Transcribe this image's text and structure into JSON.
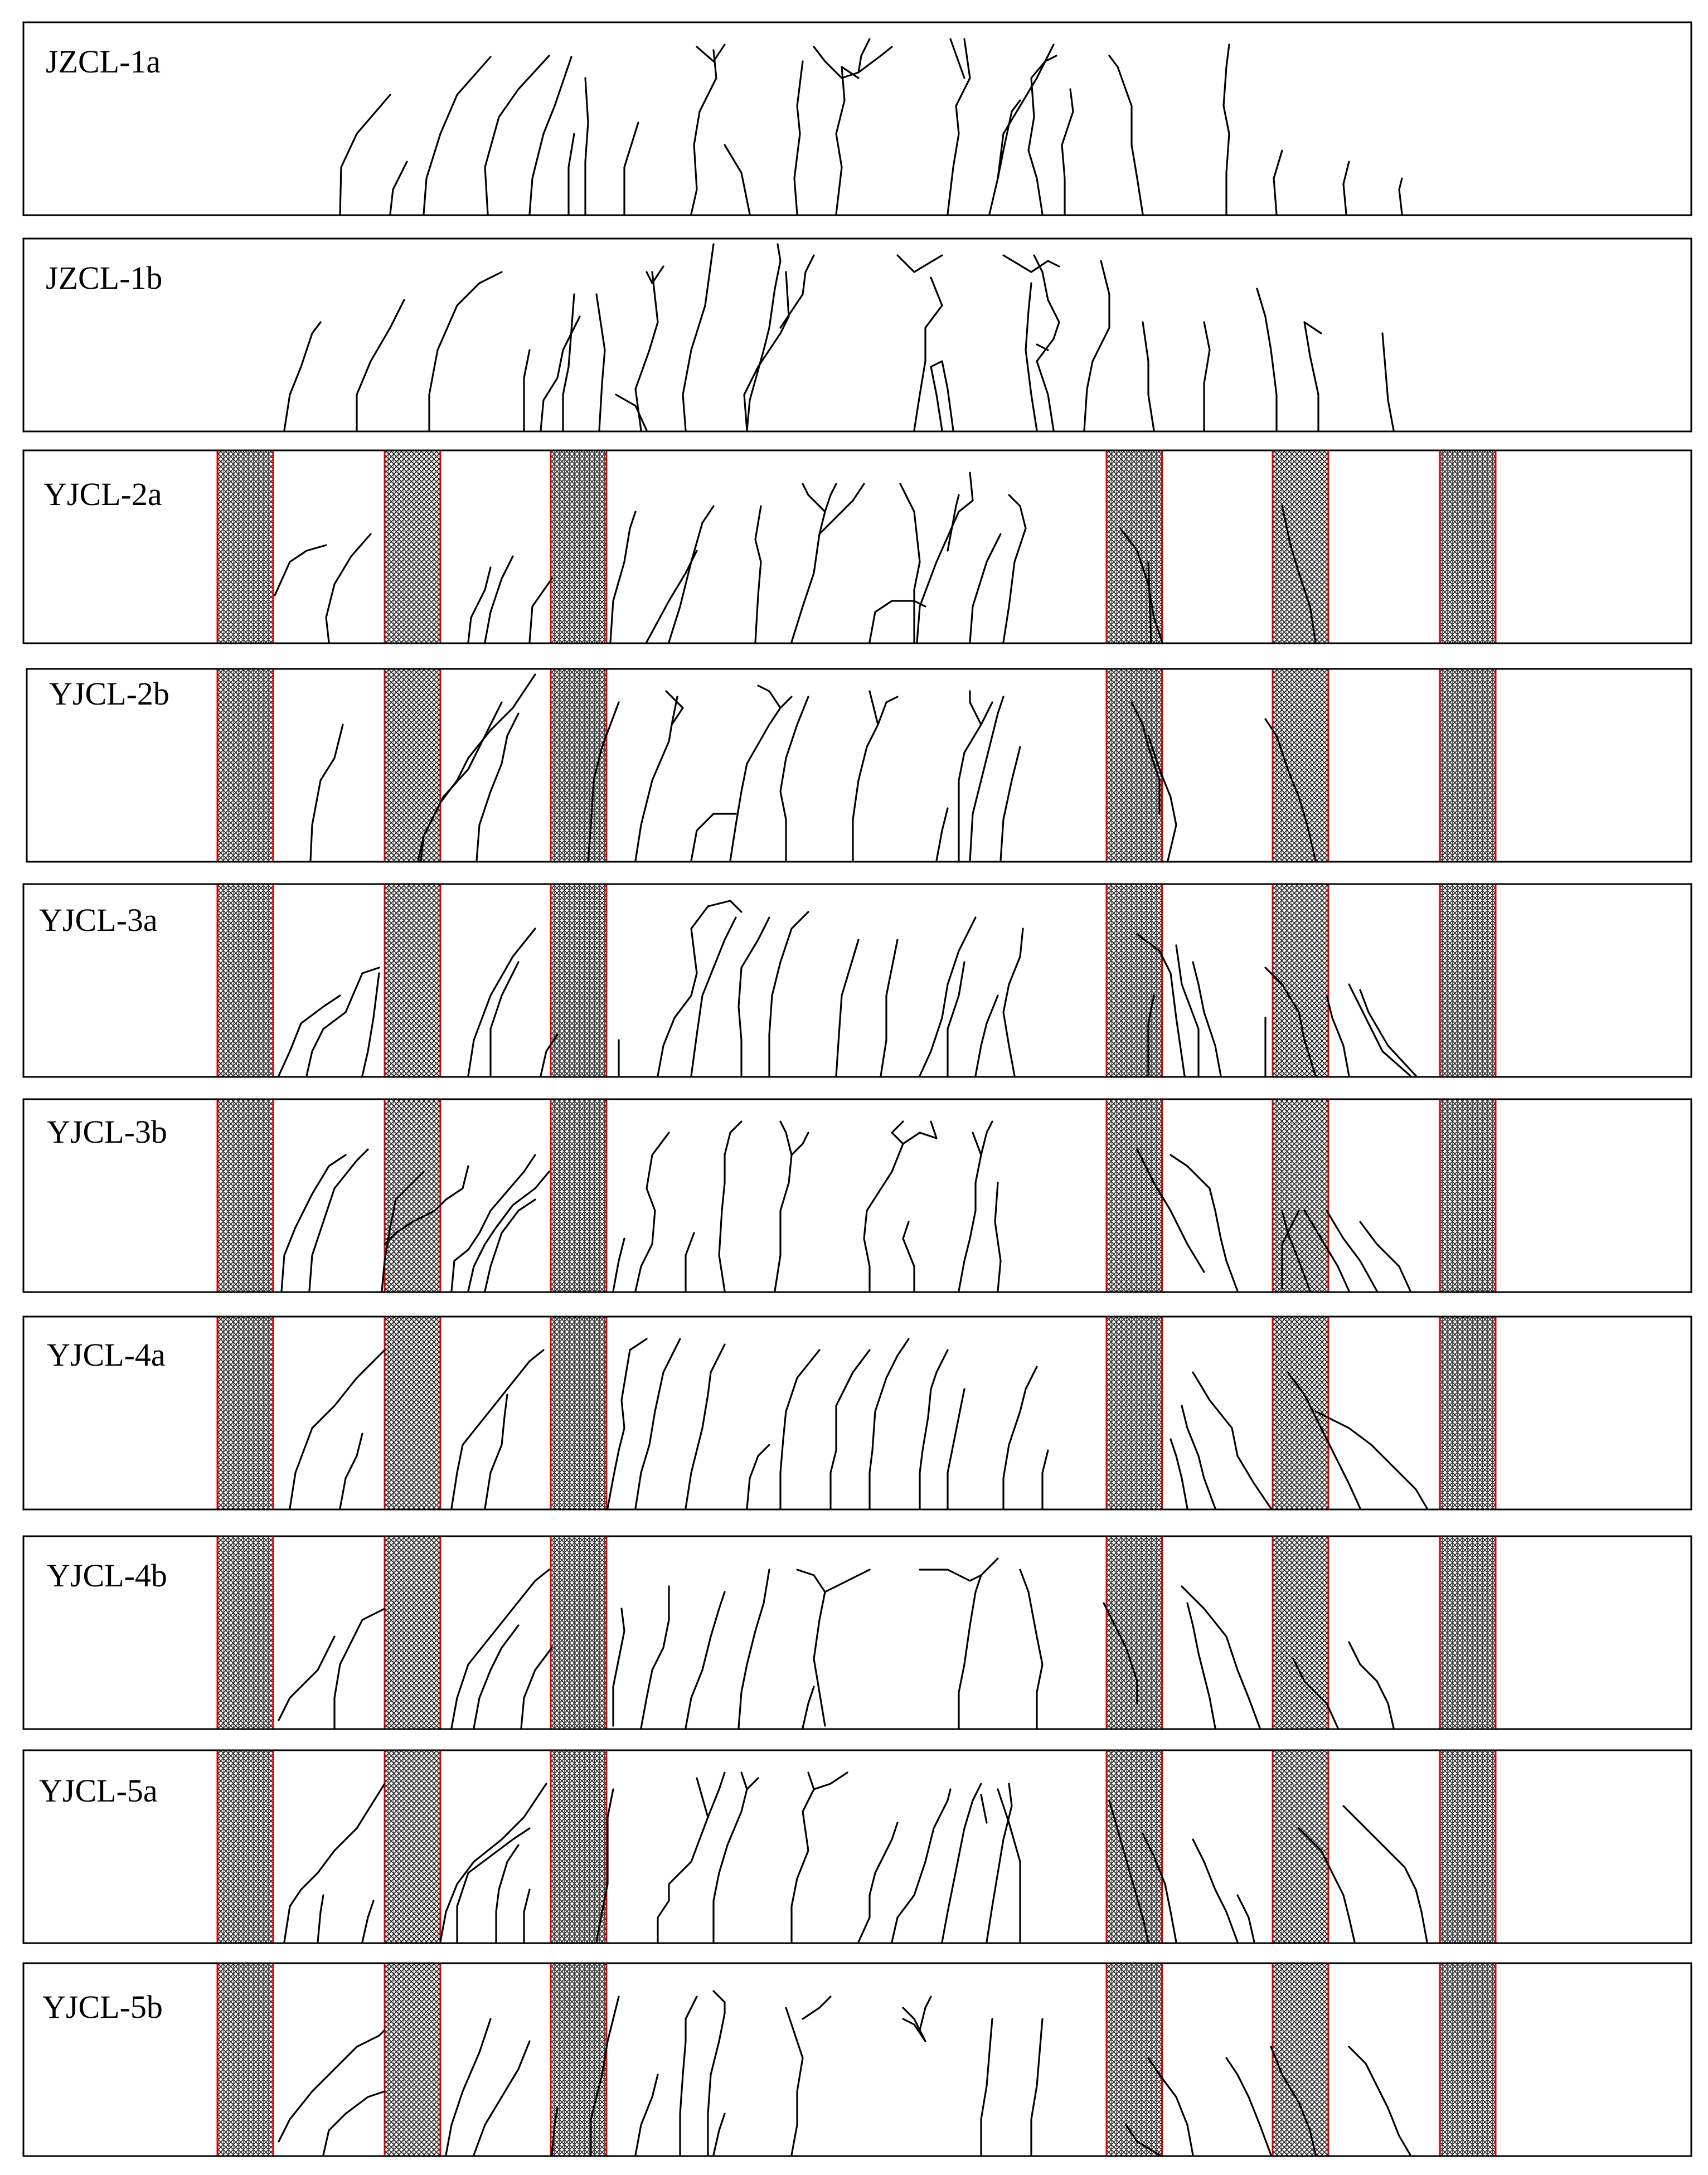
{
  "specimens": [
    {
      "label": "JZCL-1a",
      "strips": false
    },
    {
      "label": "JZCL-1b",
      "strips": false
    },
    {
      "label": "YJCL-2a",
      "strips": true
    },
    {
      "label": "YJCL-2b",
      "strips": true
    },
    {
      "label": "YJCL-3a",
      "strips": true
    },
    {
      "label": "YJCL-3b",
      "strips": true
    },
    {
      "label": "YJCL-4a",
      "strips": true
    },
    {
      "label": "YJCL-4b",
      "strips": true
    },
    {
      "label": "YJCL-5a",
      "strips": true
    },
    {
      "label": "YJCL-5b",
      "strips": true
    }
  ],
  "colors": {
    "frame": "#000000",
    "crack": "#000000",
    "strip_edge": "#e00000",
    "strip_mesh": "#222222",
    "background": "#ffffff"
  }
}
